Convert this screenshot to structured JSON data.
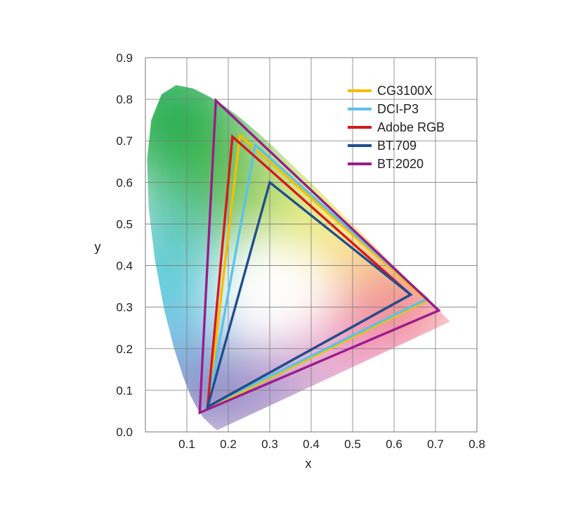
{
  "chart_data": {
    "type": "scatter",
    "title": "",
    "xlabel": "x",
    "ylabel": "y",
    "xlim": [
      0,
      0.8
    ],
    "ylim": [
      0,
      0.9
    ],
    "xticks": [
      "0.1",
      "0.2",
      "0.3",
      "0.4",
      "0.5",
      "0.6",
      "0.7",
      "0.8"
    ],
    "yticks": [
      "0.0",
      "0.1",
      "0.2",
      "0.3",
      "0.4",
      "0.5",
      "0.6",
      "0.7",
      "0.8",
      "0.9"
    ],
    "grid": true,
    "legend_position": "top-right",
    "spectral_locus": [
      [
        0.175,
        0.005
      ],
      [
        0.172,
        0.005
      ],
      [
        0.166,
        0.009
      ],
      [
        0.161,
        0.014
      ],
      [
        0.151,
        0.023
      ],
      [
        0.139,
        0.035
      ],
      [
        0.124,
        0.058
      ],
      [
        0.109,
        0.087
      ],
      [
        0.091,
        0.133
      ],
      [
        0.069,
        0.201
      ],
      [
        0.045,
        0.295
      ],
      [
        0.023,
        0.413
      ],
      [
        0.008,
        0.538
      ],
      [
        0.004,
        0.655
      ],
      [
        0.014,
        0.75
      ],
      [
        0.039,
        0.812
      ],
      [
        0.074,
        0.834
      ],
      [
        0.115,
        0.826
      ],
      [
        0.155,
        0.806
      ],
      [
        0.193,
        0.782
      ],
      [
        0.23,
        0.754
      ],
      [
        0.266,
        0.724
      ],
      [
        0.302,
        0.692
      ],
      [
        0.337,
        0.659
      ],
      [
        0.373,
        0.624
      ],
      [
        0.409,
        0.59
      ],
      [
        0.445,
        0.554
      ],
      [
        0.479,
        0.52
      ],
      [
        0.512,
        0.487
      ],
      [
        0.545,
        0.455
      ],
      [
        0.575,
        0.424
      ],
      [
        0.603,
        0.396
      ],
      [
        0.627,
        0.372
      ],
      [
        0.648,
        0.351
      ],
      [
        0.666,
        0.334
      ],
      [
        0.68,
        0.32
      ],
      [
        0.691,
        0.309
      ],
      [
        0.701,
        0.299
      ],
      [
        0.709,
        0.291
      ],
      [
        0.715,
        0.285
      ],
      [
        0.735,
        0.265
      ]
    ],
    "series": [
      {
        "name": "CG3100X",
        "color": "#f6be00",
        "points": [
          [
            0.68,
            0.316
          ],
          [
            0.228,
            0.713
          ],
          [
            0.151,
            0.056
          ]
        ]
      },
      {
        "name": "DCI-P3",
        "color": "#5bc3ea",
        "points": [
          [
            0.68,
            0.32
          ],
          [
            0.265,
            0.69
          ],
          [
            0.15,
            0.06
          ]
        ]
      },
      {
        "name": "Adobe RGB",
        "color": "#d7191c",
        "points": [
          [
            0.64,
            0.33
          ],
          [
            0.21,
            0.71
          ],
          [
            0.15,
            0.06
          ]
        ]
      },
      {
        "name": "BT.709",
        "color": "#1f4e8f",
        "points": [
          [
            0.64,
            0.33
          ],
          [
            0.3,
            0.6
          ],
          [
            0.15,
            0.06
          ]
        ]
      },
      {
        "name": "BT.2020",
        "color": "#9b1b8c",
        "points": [
          [
            0.708,
            0.292
          ],
          [
            0.17,
            0.797
          ],
          [
            0.131,
            0.046
          ]
        ]
      }
    ]
  }
}
